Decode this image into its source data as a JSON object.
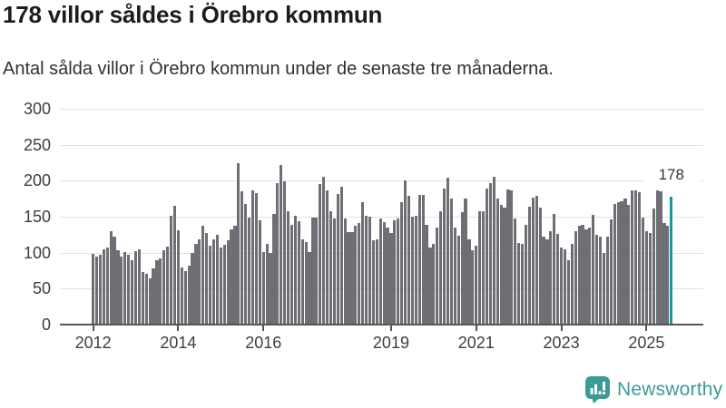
{
  "header": {
    "title": "178 villor såldes i Örebro kommun",
    "subtitle": "Antal sålda villor i Örebro kommun under de senaste tre månaderna."
  },
  "footer": {
    "brand": "Newsworthy",
    "brand_color": "#3c9b96"
  },
  "chart_data": {
    "type": "bar",
    "title": "178 villor såldes i Örebro kommun",
    "subtitle": "Antal sålda villor i Örebro kommun under de senaste tre månaderna.",
    "unit": "sålda villor (rullande tre månader)",
    "frequency": "monthly",
    "start_month": "2012-01",
    "ylim": [
      0,
      300
    ],
    "y_ticks": [
      0,
      50,
      100,
      150,
      200,
      250,
      300
    ],
    "x_tick_labels": [
      "2012",
      "2014",
      "2016",
      "2019",
      "2021",
      "2023",
      "2025"
    ],
    "x_tick_month_indices": [
      0,
      24,
      48,
      84,
      108,
      132,
      156
    ],
    "grid": "horizontal",
    "bar_color": "#6d6f75",
    "highlight_color": "#16999b",
    "highlight_index": 163,
    "highlight_label": "178",
    "values": [
      98,
      94,
      97,
      104,
      107,
      130,
      122,
      103,
      95,
      101,
      97,
      90,
      102,
      104,
      73,
      71,
      64,
      78,
      89,
      92,
      103,
      109,
      151,
      165,
      131,
      79,
      75,
      82,
      100,
      112,
      118,
      137,
      127,
      110,
      118,
      125,
      107,
      111,
      117,
      132,
      138,
      224,
      185,
      168,
      149,
      187,
      183,
      145,
      101,
      112,
      100,
      154,
      197,
      222,
      199,
      158,
      139,
      151,
      144,
      118,
      115,
      101,
      149,
      149,
      196,
      206,
      187,
      158,
      147,
      181,
      191,
      147,
      128,
      129,
      137,
      141,
      170,
      151,
      150,
      117,
      119,
      148,
      142,
      135,
      127,
      145,
      147,
      170,
      200,
      179,
      150,
      151,
      180,
      180,
      139,
      107,
      112,
      135,
      157,
      189,
      204,
      175,
      135,
      124,
      156,
      175,
      118,
      103,
      110,
      158,
      157,
      189,
      197,
      205,
      175,
      166,
      162,
      188,
      187,
      147,
      114,
      112,
      139,
      164,
      177,
      179,
      162,
      122,
      118,
      130,
      154,
      126,
      107,
      105,
      90,
      112,
      130,
      137,
      139,
      132,
      135,
      153,
      125,
      122,
      100,
      122,
      146,
      168,
      170,
      171,
      175,
      166,
      186,
      187,
      184,
      149,
      130,
      127,
      161,
      187,
      185,
      141,
      137,
      178
    ]
  }
}
